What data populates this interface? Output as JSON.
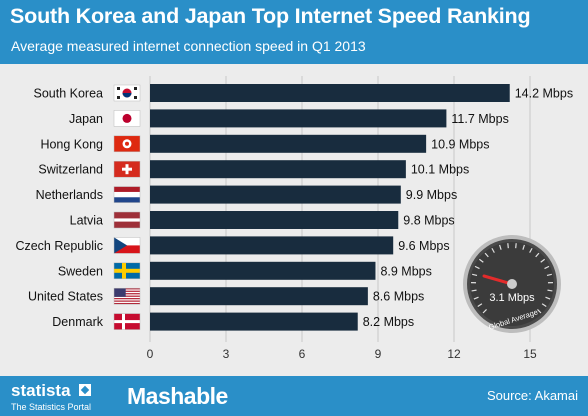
{
  "header": {
    "title": "South Korea and Japan Top Internet Speed Ranking",
    "subtitle": "Average measured internet connection speed in Q1 2013"
  },
  "chart_data": {
    "type": "bar",
    "orientation": "horizontal",
    "title": "South Korea and Japan Top Internet Speed Ranking",
    "subtitle": "Average measured internet connection speed in Q1 2013",
    "categories": [
      "South Korea",
      "Japan",
      "Hong Kong",
      "Switzerland",
      "Netherlands",
      "Latvia",
      "Czech Republic",
      "Sweden",
      "United States",
      "Denmark"
    ],
    "values": [
      14.2,
      11.7,
      10.9,
      10.1,
      9.9,
      9.8,
      9.6,
      8.9,
      8.6,
      8.2
    ],
    "value_labels": [
      "14.2 Mbps",
      "11.7 Mbps",
      "10.9 Mbps",
      "10.1 Mbps",
      "9.9 Mbps",
      "9.8 Mbps",
      "9.6 Mbps",
      "8.9 Mbps",
      "8.6 Mbps",
      "8.2 Mbps"
    ],
    "unit": "Mbps",
    "xlim": [
      0,
      15
    ],
    "x_ticks": [
      0,
      3,
      6,
      9,
      12,
      15
    ],
    "grid": true,
    "bar_color": "#182c3e",
    "flags": [
      "south-korea-flag-icon",
      "japan-flag-icon",
      "hong-kong-flag-icon",
      "switzerland-flag-icon",
      "netherlands-flag-icon",
      "latvia-flag-icon",
      "czech-republic-flag-icon",
      "sweden-flag-icon",
      "united-states-flag-icon",
      "denmark-flag-icon"
    ],
    "annotation": {
      "global_average_value": 3.1,
      "global_average_label": "3.1 Mbps",
      "global_average_caption": "Global Average",
      "icon": "speedometer-icon"
    }
  },
  "footer": {
    "statista_word": "statista",
    "statista_tagline": "The Statistics Portal",
    "partner": "Mashable",
    "source": "Source: Akamai"
  },
  "colors": {
    "header_bg": "#2a8fc8",
    "footer_bg": "#2a8fc8",
    "bar": "#182c3e",
    "background": "#ececec"
  }
}
